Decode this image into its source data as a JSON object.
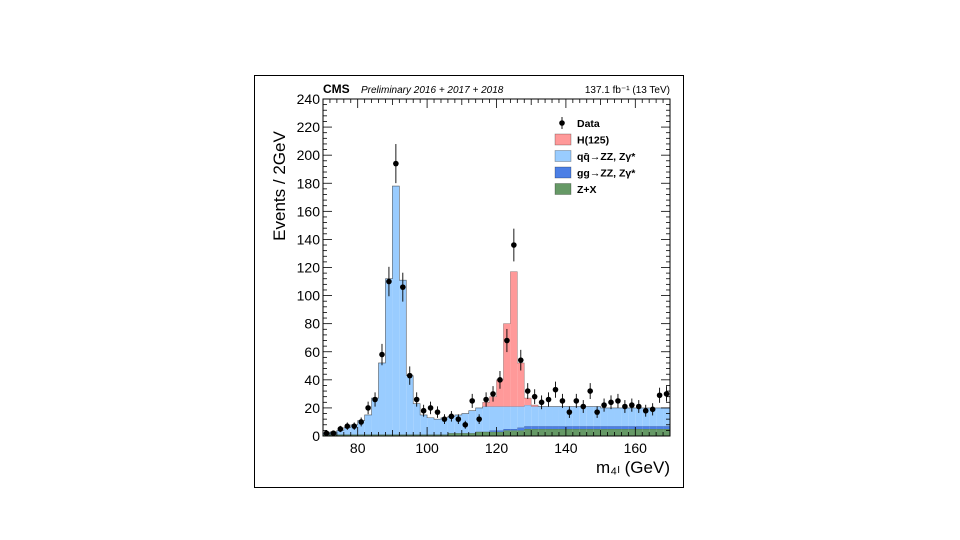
{
  "chart_data": {
    "type": "bar",
    "experiment": "CMS",
    "subtitle": "Preliminary 2016 + 2017 + 2018",
    "lumi": "137.1 fb⁻¹ (13 TeV)",
    "ylabel": "Events / 2GeV",
    "xlabel": "m₄ₗ (GeV)",
    "xlim": [
      70,
      170
    ],
    "ylim": [
      0,
      240
    ],
    "x_ticks": [
      "80",
      "100",
      "120",
      "140",
      "160"
    ],
    "y_ticks": [
      "0",
      "20",
      "40",
      "60",
      "80",
      "100",
      "120",
      "140",
      "160",
      "180",
      "200",
      "220",
      "240"
    ],
    "bin_edges_start": 70,
    "bin_width": 2,
    "series": [
      {
        "name": "Z+X",
        "color": "#669966",
        "values": [
          1,
          1,
          1,
          1,
          1,
          1,
          1,
          1,
          1,
          1,
          1,
          1,
          1,
          1,
          1,
          1,
          1,
          1,
          2,
          2,
          2,
          2,
          3,
          3,
          3,
          3,
          4,
          4,
          4,
          5,
          5,
          5,
          5,
          5,
          5,
          5,
          5,
          5,
          5,
          5,
          5,
          5,
          5,
          5,
          5,
          5,
          5,
          5,
          5,
          5
        ]
      },
      {
        "name": "gg→ZZ, Zγ*",
        "color": "#4c7fe5",
        "values": [
          0,
          0,
          0,
          0,
          0,
          0,
          0,
          0,
          0,
          0,
          0,
          0,
          0,
          0,
          0,
          0,
          0,
          0,
          0,
          0,
          0,
          0,
          0,
          0,
          1,
          1,
          1,
          1,
          2,
          2,
          2,
          2,
          2,
          2,
          2,
          2,
          2,
          2,
          2,
          2,
          2,
          2,
          2,
          2,
          2,
          2,
          2,
          2,
          2,
          2
        ]
      },
      {
        "name": "qq̄→ZZ, Zγ*",
        "color": "#99ccff",
        "values": [
          1,
          2,
          3,
          5,
          7,
          10,
          14,
          26,
          51,
          111,
          177,
          110,
          42,
          22,
          14,
          12,
          11,
          12,
          12,
          13,
          14,
          16,
          17,
          18,
          17,
          17,
          16,
          16,
          15,
          15,
          14,
          14,
          14,
          14,
          14,
          14,
          14,
          14,
          14,
          14,
          13,
          13,
          13,
          13,
          13,
          13,
          13,
          13,
          13,
          13
        ]
      },
      {
        "name": "H(125)",
        "color": "#ff9999",
        "values": [
          0,
          0,
          0,
          0,
          0,
          0,
          0,
          0,
          0,
          0,
          0,
          0,
          0,
          0,
          0,
          0,
          0,
          0,
          0,
          0,
          0,
          0,
          0,
          3,
          7,
          19,
          59,
          96,
          31,
          5,
          1,
          0,
          0,
          0,
          0,
          0,
          0,
          0,
          0,
          0,
          0,
          0,
          0,
          0,
          0,
          0,
          0,
          0,
          0,
          0
        ]
      }
    ],
    "data_points": {
      "name": "Data",
      "x": [
        71,
        73,
        75,
        77,
        79,
        81,
        83,
        85,
        87,
        89,
        91,
        93,
        95,
        97,
        99,
        101,
        103,
        105,
        107,
        109,
        111,
        113,
        115,
        117,
        119,
        121,
        123,
        125,
        127,
        129,
        131,
        133,
        135,
        137,
        139,
        141,
        143,
        145,
        147,
        149,
        151,
        153,
        155,
        157,
        159,
        161,
        163,
        165,
        167,
        169
      ],
      "y": [
        2,
        2,
        5,
        7,
        7,
        10,
        20,
        26,
        58,
        110,
        194,
        106,
        43,
        26,
        18,
        20,
        17,
        12,
        14,
        12,
        8,
        25,
        12,
        26,
        30,
        40,
        68,
        136,
        54,
        32,
        28,
        24,
        26,
        33,
        25,
        17,
        25,
        21,
        32,
        17,
        22,
        24,
        25,
        21,
        22,
        21,
        18,
        19,
        29,
        30
      ]
    },
    "legend": [
      "Data",
      "H(125)",
      "qq̄→ZZ, Zγ*",
      "gg→ZZ, Zγ*",
      "Z+X"
    ],
    "legend_position": "top-right"
  }
}
